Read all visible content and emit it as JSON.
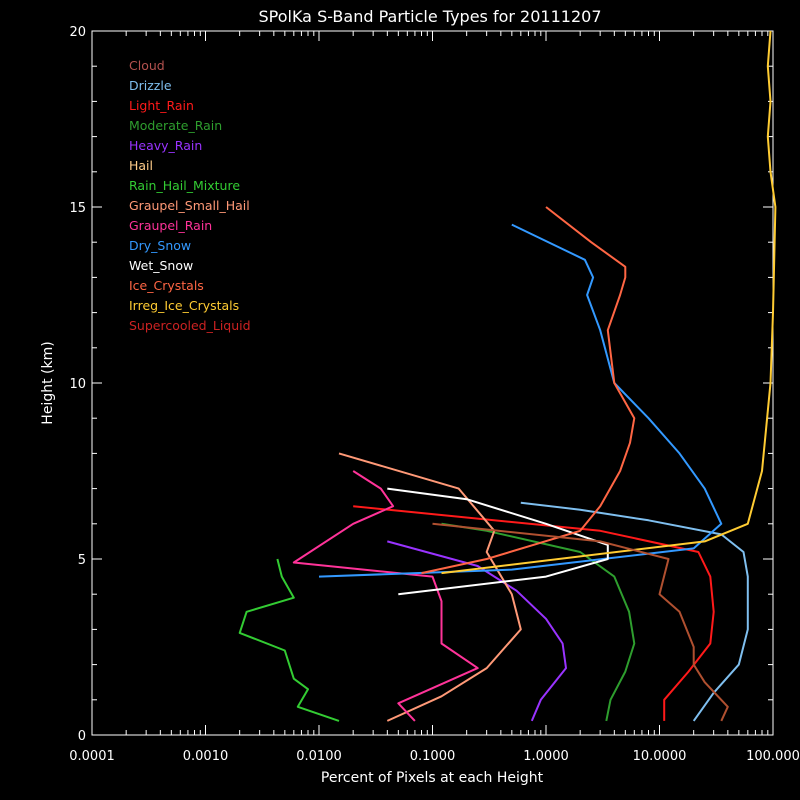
{
  "chart_data": {
    "type": "line",
    "title": "SPolKa S-Band Particle Types for 20111207",
    "xlabel": "Percent of Pixels at each Height",
    "ylabel": "Height (km)",
    "x_scale": "log",
    "xlim": [
      0.0001,
      100
    ],
    "ylim": [
      0,
      20
    ],
    "x_tick_labels": [
      "0.0001",
      "0.0010",
      "0.0100",
      "0.1000",
      "1.0000",
      "10.0000",
      "100.000"
    ],
    "y_tick_labels": [
      "0",
      "5",
      "10",
      "15",
      "20"
    ],
    "legend_position": "top-left",
    "grid": false,
    "series": [
      {
        "name": "Cloud",
        "color": "#b4524f",
        "points": []
      },
      {
        "name": "Drizzle",
        "color": "#7fbfef",
        "points": [
          [
            20,
            0.4
          ],
          [
            30,
            1.2
          ],
          [
            50,
            2
          ],
          [
            60,
            3
          ],
          [
            60,
            4.5
          ],
          [
            55,
            5.2
          ],
          [
            35,
            5.7
          ],
          [
            8,
            6.1
          ],
          [
            2,
            6.4
          ],
          [
            0.6,
            6.6
          ]
        ]
      },
      {
        "name": "Light_Rain",
        "color": "#ff1a1a",
        "points": [
          [
            11,
            0.4
          ],
          [
            11,
            1
          ],
          [
            18,
            1.8
          ],
          [
            28,
            2.6
          ],
          [
            30,
            3.5
          ],
          [
            28,
            4.5
          ],
          [
            22,
            5.2
          ],
          [
            3,
            5.8
          ],
          [
            0.02,
            6.5
          ]
        ]
      },
      {
        "name": "Moderate_Rain",
        "color": "#2e9e2e",
        "points": [
          [
            3.4,
            0.4
          ],
          [
            3.7,
            1
          ],
          [
            5,
            1.8
          ],
          [
            6,
            2.6
          ],
          [
            5.4,
            3.5
          ],
          [
            4,
            4.5
          ],
          [
            2,
            5.2
          ],
          [
            0.3,
            5.8
          ],
          [
            0.12,
            6
          ]
        ]
      },
      {
        "name": "Heavy_Rain",
        "color": "#9933ff",
        "points": [
          [
            0.75,
            0.4
          ],
          [
            0.9,
            1
          ],
          [
            1.5,
            1.9
          ],
          [
            1.4,
            2.6
          ],
          [
            1,
            3.3
          ],
          [
            0.55,
            4.1
          ],
          [
            0.25,
            4.8
          ],
          [
            0.04,
            5.5
          ]
        ]
      },
      {
        "name": "Hail",
        "color": "#ffcc88",
        "points": []
      },
      {
        "name": "Rain_Hail_Mixture",
        "color": "#33cc33",
        "points": [
          [
            0.015,
            0.4
          ],
          [
            0.0065,
            0.8
          ],
          [
            0.008,
            1.3
          ],
          [
            0.006,
            1.6
          ],
          [
            0.005,
            2.4
          ],
          [
            0.002,
            2.9
          ],
          [
            0.0023,
            3.5
          ],
          [
            0.006,
            3.9
          ],
          [
            0.0047,
            4.5
          ],
          [
            0.0043,
            5.0
          ]
        ]
      },
      {
        "name": "Graupel_Small_Hail",
        "color": "#ff9977",
        "points": [
          [
            0.04,
            0.4
          ],
          [
            0.12,
            1.1
          ],
          [
            0.3,
            1.9
          ],
          [
            0.6,
            3.0
          ],
          [
            0.5,
            4.0
          ],
          [
            0.3,
            5.2
          ],
          [
            0.35,
            5.8
          ],
          [
            0.17,
            7.0
          ],
          [
            0.015,
            8.0
          ]
        ]
      },
      {
        "name": "Graupel_Rain",
        "color": "#ff3399",
        "points": [
          [
            0.07,
            0.4
          ],
          [
            0.05,
            0.9
          ],
          [
            0.25,
            1.9
          ],
          [
            0.12,
            2.6
          ],
          [
            0.12,
            3.8
          ],
          [
            0.1,
            4.5
          ],
          [
            0.006,
            4.9
          ],
          [
            0.02,
            6.0
          ],
          [
            0.045,
            6.5
          ],
          [
            0.035,
            7.0
          ],
          [
            0.02,
            7.5
          ]
        ]
      },
      {
        "name": "Dry_Snow",
        "color": "#3399ff",
        "points": [
          [
            0.01,
            4.5
          ],
          [
            0.5,
            4.7
          ],
          [
            20,
            5.3
          ],
          [
            35,
            6.0
          ],
          [
            25,
            7.0
          ],
          [
            15,
            8.0
          ],
          [
            8,
            9.0
          ],
          [
            4,
            10.0
          ],
          [
            3,
            11.5
          ],
          [
            2.3,
            12.5
          ],
          [
            2.6,
            13.0
          ],
          [
            2.2,
            13.5
          ],
          [
            0.5,
            14.5
          ]
        ]
      },
      {
        "name": "Wet_Snow",
        "color": "#ffffff",
        "points": [
          [
            0.05,
            4.0
          ],
          [
            1,
            4.5
          ],
          [
            3.5,
            5.0
          ],
          [
            3.5,
            5.4
          ],
          [
            1,
            6.0
          ],
          [
            0.2,
            6.7
          ],
          [
            0.04,
            7.0
          ]
        ]
      },
      {
        "name": "Ice_Crystals",
        "color": "#ff6644",
        "points": [
          [
            0.08,
            4.6
          ],
          [
            0.3,
            5.0
          ],
          [
            2,
            5.8
          ],
          [
            3,
            6.5
          ],
          [
            4.5,
            7.5
          ],
          [
            5.5,
            8.3
          ],
          [
            6,
            9.0
          ],
          [
            4,
            10.0
          ],
          [
            3.5,
            11.5
          ],
          [
            4.5,
            12.5
          ],
          [
            5,
            13.0
          ],
          [
            5,
            13.3
          ],
          [
            2.5,
            14.0
          ],
          [
            1,
            15.0
          ]
        ]
      },
      {
        "name": "Irreg_Ice_Crystals",
        "color": "#ffcc33",
        "points": [
          [
            0.12,
            4.6
          ],
          [
            25,
            5.5
          ],
          [
            60,
            6.0
          ],
          [
            80,
            7.5
          ],
          [
            95,
            10
          ],
          [
            100,
            12
          ],
          [
            105,
            15
          ],
          [
            95,
            16
          ],
          [
            90,
            17
          ],
          [
            95,
            18
          ],
          [
            90,
            19
          ],
          [
            95,
            20
          ]
        ]
      },
      {
        "name": "Supercooled_Liquid",
        "color": "#cc2222",
        "points": []
      },
      {
        "name": "",
        "color": "#b05030",
        "points": [
          [
            35,
            0.4
          ],
          [
            40,
            0.8
          ],
          [
            25,
            1.5
          ],
          [
            20,
            2.0
          ],
          [
            20,
            2.5
          ],
          [
            15,
            3.5
          ],
          [
            10,
            4.0
          ],
          [
            12,
            5.0
          ],
          [
            3,
            5.5
          ],
          [
            0.1,
            6.0
          ]
        ]
      }
    ]
  }
}
